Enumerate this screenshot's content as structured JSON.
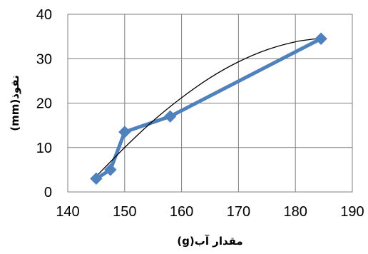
{
  "chart_data": {
    "type": "line",
    "title": "",
    "xlabel": "مقدار آب(g)",
    "ylabel": "نفوذ(mm)",
    "xlim": [
      140,
      190
    ],
    "ylim": [
      0,
      40
    ],
    "x_ticks": [
      140,
      150,
      160,
      170,
      180,
      190
    ],
    "y_ticks": [
      0,
      10,
      20,
      30,
      40
    ],
    "grid": {
      "horizontal": true,
      "vertical": true
    },
    "legend": "none",
    "series": [
      {
        "type": "line",
        "marker": "diamond",
        "color": "#4f81bd",
        "x": [
          145,
          147.5,
          150,
          158,
          184.5
        ],
        "y": [
          3,
          5,
          13.5,
          17,
          34.5
        ]
      },
      {
        "type": "trendline",
        "color": "#000000",
        "x": [
          145,
          150,
          155,
          160,
          165,
          170,
          175,
          180,
          184.5
        ],
        "y": [
          3.5,
          10,
          16,
          21.2,
          25.7,
          29.3,
          32.0,
          33.8,
          34.6
        ]
      }
    ]
  }
}
